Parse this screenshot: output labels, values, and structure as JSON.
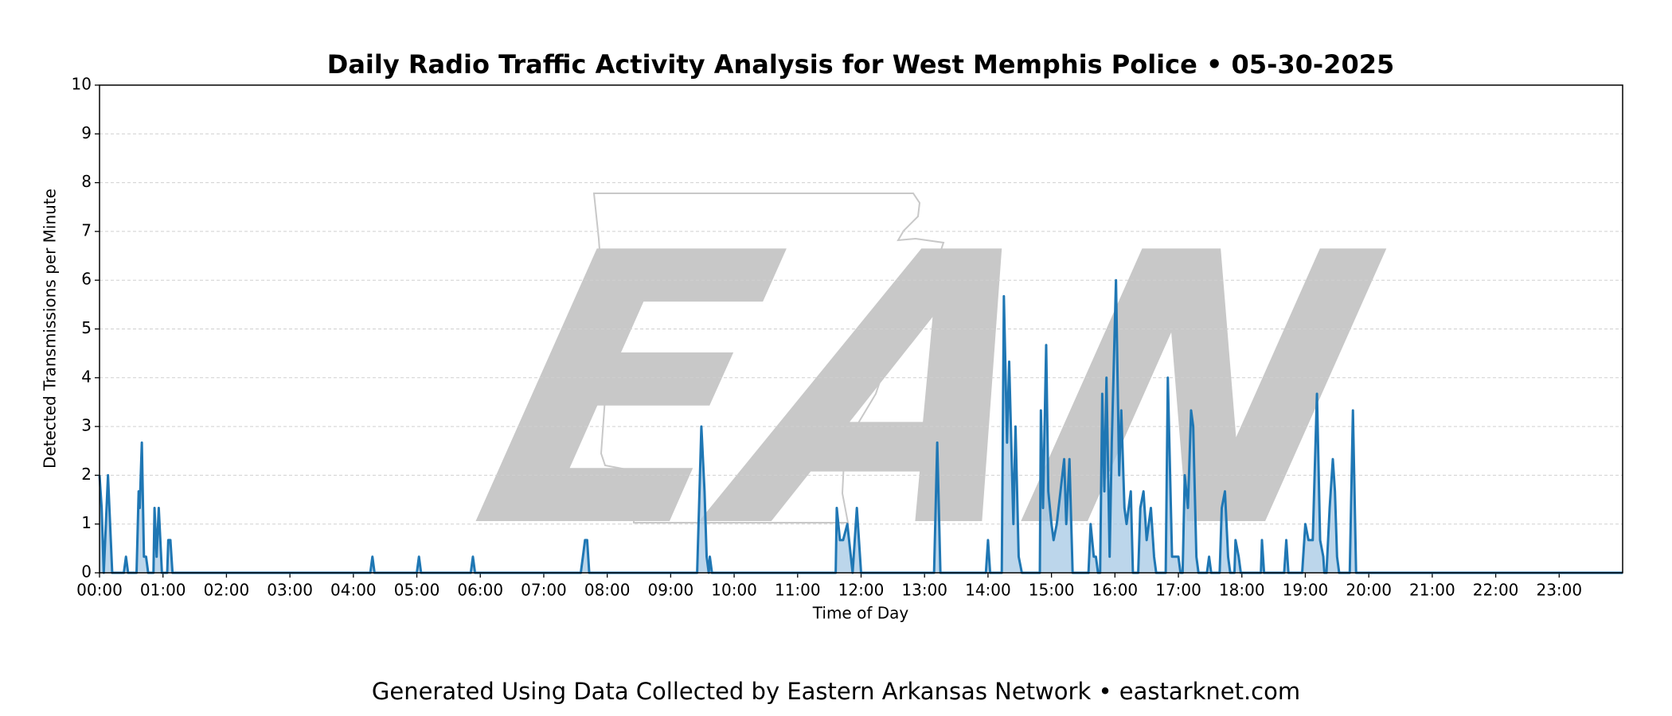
{
  "chart_data": {
    "type": "line",
    "title": "Daily Radio Traffic Activity Analysis for West Memphis Police • 05-30-2025",
    "x_label": "Time of Day",
    "y_label": "Detected Transmissions per Minute",
    "watermark": "EAN",
    "caption": "Generated Using Data Collected by Eastern Arkansas Network • eastarknet.com",
    "color": "#1f77b4",
    "fill_color": "#a6c8e4",
    "grid": true,
    "xlim": [
      0,
      1440
    ],
    "ylim": [
      0,
      10
    ],
    "yticks": [
      0,
      1,
      2,
      3,
      4,
      5,
      6,
      7,
      8,
      9,
      10
    ],
    "xticks": [
      {
        "value": 0,
        "label": "00:00"
      },
      {
        "value": 60,
        "label": "01:00"
      },
      {
        "value": 120,
        "label": "02:00"
      },
      {
        "value": 180,
        "label": "03:00"
      },
      {
        "value": 240,
        "label": "04:00"
      },
      {
        "value": 300,
        "label": "05:00"
      },
      {
        "value": 360,
        "label": "06:00"
      },
      {
        "value": 420,
        "label": "07:00"
      },
      {
        "value": 480,
        "label": "08:00"
      },
      {
        "value": 540,
        "label": "09:00"
      },
      {
        "value": 600,
        "label": "10:00"
      },
      {
        "value": 660,
        "label": "11:00"
      },
      {
        "value": 720,
        "label": "12:00"
      },
      {
        "value": 780,
        "label": "13:00"
      },
      {
        "value": 840,
        "label": "14:00"
      },
      {
        "value": 900,
        "label": "15:00"
      },
      {
        "value": 960,
        "label": "16:00"
      },
      {
        "value": 1020,
        "label": "17:00"
      },
      {
        "value": 1080,
        "label": "18:00"
      },
      {
        "value": 1140,
        "label": "19:00"
      },
      {
        "value": 1200,
        "label": "20:00"
      },
      {
        "value": 1260,
        "label": "21:00"
      },
      {
        "value": 1320,
        "label": "22:00"
      },
      {
        "value": 1380,
        "label": "23:00"
      }
    ],
    "x": [
      0,
      2,
      4,
      8,
      12,
      23,
      25,
      27,
      35,
      37,
      38,
      40,
      42,
      44,
      46,
      51,
      52,
      54,
      56,
      59,
      64,
      65,
      67,
      69,
      256,
      258,
      260,
      300,
      302,
      304,
      351,
      353,
      355,
      455,
      457,
      459,
      461,
      463,
      565,
      569,
      572,
      574,
      576,
      577,
      579,
      696,
      697,
      700,
      703,
      707,
      712,
      716,
      720,
      789,
      792,
      795,
      838,
      840,
      842,
      853,
      855,
      858,
      860,
      864,
      866,
      869,
      872,
      889,
      890,
      892,
      895,
      897,
      900,
      902,
      905,
      912,
      914,
      917,
      920,
      935,
      937,
      940,
      942,
      944,
      946,
      948,
      950,
      952,
      955,
      957,
      961,
      964,
      966,
      969,
      971,
      975,
      977,
      982,
      984,
      987,
      990,
      994,
      997,
      999,
      1008,
      1010,
      1014,
      1020,
      1022,
      1024,
      1026,
      1029,
      1032,
      1034,
      1037,
      1039,
      1047,
      1049,
      1051,
      1059,
      1061,
      1064,
      1067,
      1069,
      1073,
      1074,
      1077,
      1079,
      1098,
      1099,
      1101,
      1120,
      1122,
      1124,
      1137,
      1140,
      1143,
      1147,
      1151,
      1154,
      1157,
      1158,
      1160,
      1163,
      1166,
      1168,
      1170,
      1172,
      1182,
      1185,
      1188,
      1440
    ],
    "values": [
      2,
      1.33,
      0,
      2,
      0,
      0,
      0.33,
      0,
      0,
      1.67,
      1.33,
      2.67,
      0.33,
      0.33,
      0,
      0,
      1.33,
      0.33,
      1.33,
      0,
      0,
      0.67,
      0.67,
      0,
      0,
      0.33,
      0,
      0,
      0.33,
      0,
      0,
      0.33,
      0,
      0,
      0.33,
      0.67,
      0.67,
      0,
      0,
      3,
      1.67,
      0.33,
      0,
      0.33,
      0,
      0,
      1.33,
      0.67,
      0.67,
      1,
      0,
      1.33,
      0,
      0,
      2.67,
      0,
      0,
      0.67,
      0,
      0,
      5.67,
      2.67,
      4.33,
      1,
      3,
      0.33,
      0,
      0,
      3.33,
      1.33,
      4.67,
      1.67,
      1,
      0.67,
      1,
      2.33,
      1,
      2.33,
      0,
      0,
      1,
      0.33,
      0.33,
      0,
      0,
      3.67,
      1.67,
      4,
      0.33,
      2.67,
      6,
      2,
      3.33,
      1.33,
      1,
      1.67,
      0,
      0,
      1.33,
      1.67,
      0.67,
      1.33,
      0.33,
      0,
      0,
      4,
      0.33,
      0.33,
      0,
      0,
      2,
      1.33,
      3.33,
      3,
      0.33,
      0,
      0,
      0.33,
      0,
      0,
      1.33,
      1.67,
      0.33,
      0,
      0,
      0.67,
      0.33,
      0,
      0,
      0.67,
      0,
      0,
      0.67,
      0,
      0,
      1,
      0.67,
      0.67,
      3.67,
      0.67,
      0.33,
      0,
      0,
      1.33,
      2.33,
      1.67,
      0.33,
      0,
      0,
      3.33,
      0,
      0
    ]
  }
}
